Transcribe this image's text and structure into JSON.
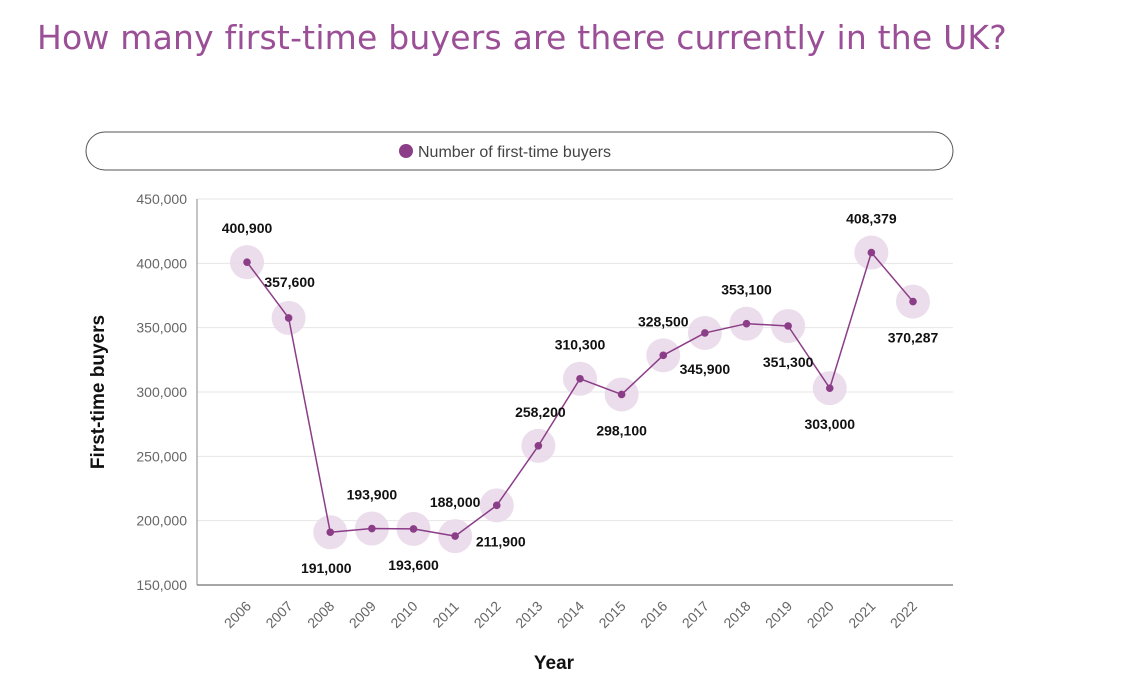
{
  "page": {
    "title": "How many first-time buyers are there currently in the UK?"
  },
  "colors": {
    "title": "#9a4f96",
    "series": "#8b3d88",
    "halo": "#e9d9e9",
    "grid": "#e6e6e6",
    "axis": "#888888"
  },
  "chart_data": {
    "type": "line",
    "title": "",
    "xlabel": "Year",
    "ylabel": "First-time buyers",
    "ylim": [
      150000,
      450000
    ],
    "yticks": [
      150000,
      200000,
      250000,
      300000,
      350000,
      400000,
      450000
    ],
    "ytick_labels": [
      "150,000",
      "200,000",
      "250,000",
      "300,000",
      "350,000",
      "400,000",
      "450,000"
    ],
    "legend": {
      "placement": "top",
      "entries": [
        "Number of first-time buyers"
      ]
    },
    "grid": true,
    "x": [
      "2006",
      "2007",
      "2008",
      "2009",
      "2010",
      "2011",
      "2012",
      "2013",
      "2014",
      "2015",
      "2016",
      "2017",
      "2018",
      "2019",
      "2020",
      "2021",
      "2022"
    ],
    "series": [
      {
        "name": "Number of first-time buyers",
        "values": [
          400900,
          357600,
          191000,
          193900,
          193600,
          188000,
          211900,
          258200,
          310300,
          298100,
          328500,
          345900,
          353100,
          351300,
          303000,
          408379,
          370287
        ],
        "labels": [
          "400,900",
          "357,600",
          "191,000",
          "193,900",
          "193,600",
          "188,000",
          "211,900",
          "258,200",
          "310,300",
          "298,100",
          "328,500",
          "345,900",
          "353,100",
          "351,300",
          "303,000",
          "408,379",
          "370,287"
        ]
      }
    ]
  }
}
